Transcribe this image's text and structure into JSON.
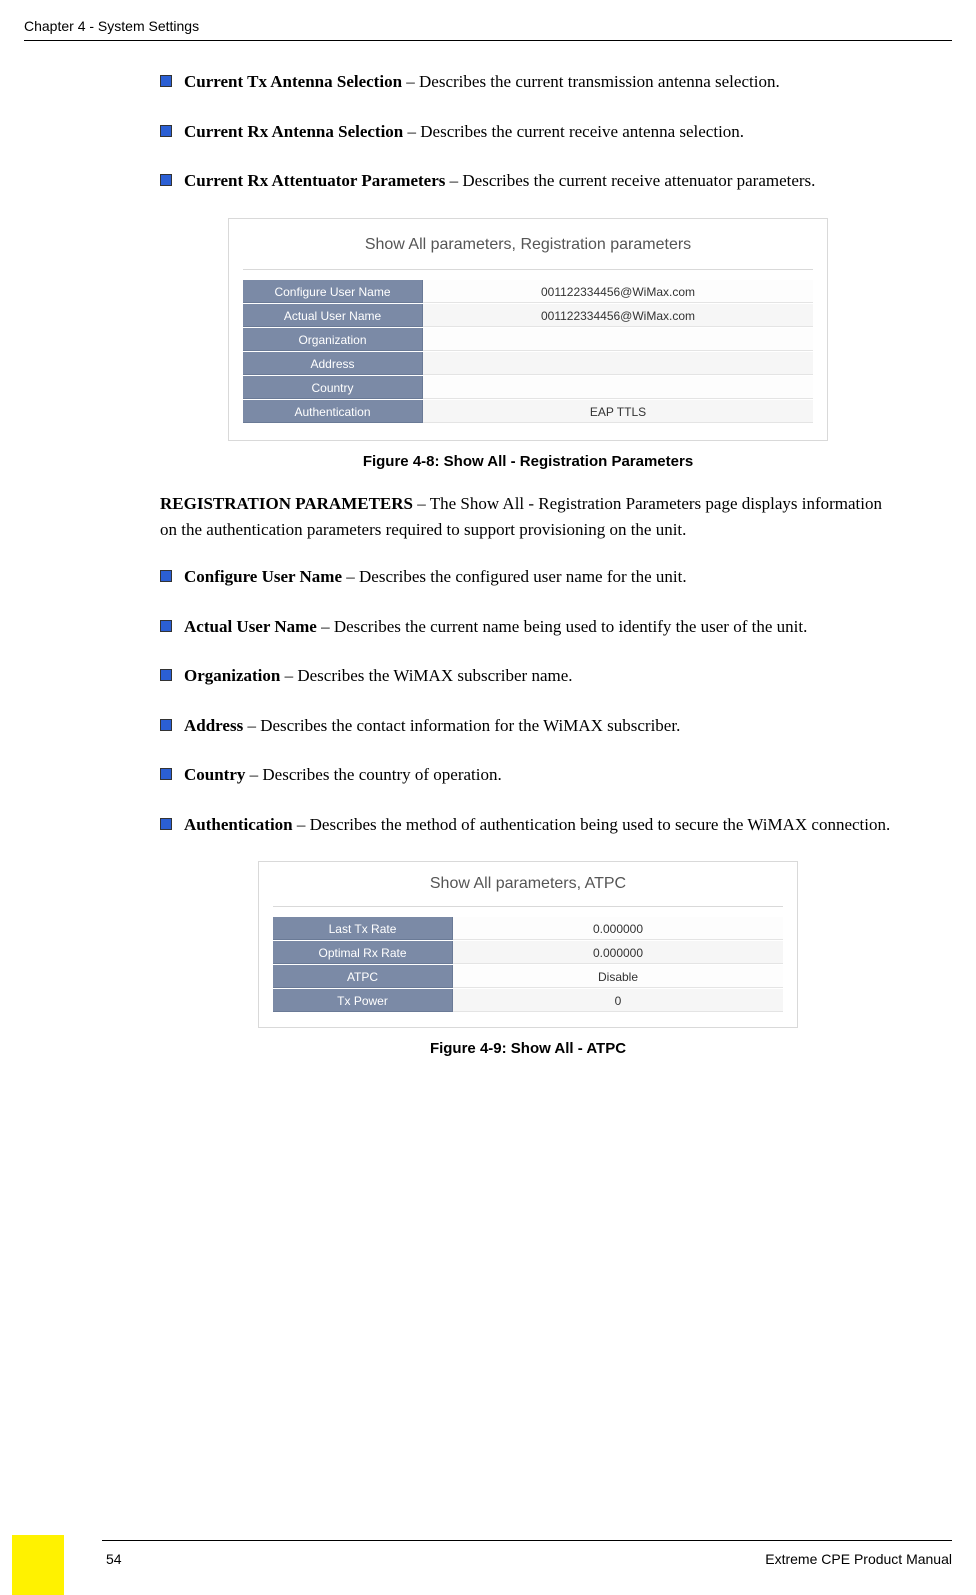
{
  "header": {
    "chapter": "Chapter 4 - System Settings"
  },
  "bullets_top": [
    {
      "term": "Current Tx Antenna Selection",
      "desc": " – Describes the current transmission antenna selection."
    },
    {
      "term": "Current Rx Antenna Selection",
      "desc": " – Describes the current receive antenna selection."
    },
    {
      "term": "Current Rx Attentuator Parameters",
      "desc": " – Describes the current receive attenuator parameters."
    }
  ],
  "figure1": {
    "title": "Show All parameters, Registration parameters",
    "caption": "Figure 4-8: Show All - Registration Parameters",
    "rows": [
      {
        "k": "Configure User Name",
        "v": "001122334456@WiMax.com"
      },
      {
        "k": "Actual User Name",
        "v": "001122334456@WiMax.com"
      },
      {
        "k": "Organization",
        "v": ""
      },
      {
        "k": "Address",
        "v": ""
      },
      {
        "k": "Country",
        "v": ""
      },
      {
        "k": "Authentication",
        "v": "EAP TTLS"
      }
    ]
  },
  "reg_intro": {
    "term": "REGISTRATION PARAMETERS",
    "desc": " – The Show All - Registration Parameters page displays information on the authentication parameters required to support provisioning on the unit."
  },
  "bullets_reg": [
    {
      "term": "Configure User Name",
      "desc": " – Describes the configured user name for the unit."
    },
    {
      "term": "Actual User Name",
      "desc": " – Describes the current name being used to identify the user of the unit."
    },
    {
      "term": "Organization",
      "desc": " – Describes the WiMAX subscriber name."
    },
    {
      "term": "Address",
      "desc": " – Describes the contact information for the WiMAX subscriber."
    },
    {
      "term": "Country",
      "desc": " – Describes the country of operation."
    },
    {
      "term": "Authentication",
      "desc": " – Describes the method of authentication being used to secure the WiMAX connection."
    }
  ],
  "figure2": {
    "title": "Show All parameters, ATPC",
    "caption": "Figure 4-9: Show All - ATPC",
    "rows": [
      {
        "k": "Last Tx Rate",
        "v": "0.000000"
      },
      {
        "k": "Optimal Rx Rate",
        "v": "0.000000"
      },
      {
        "k": "ATPC",
        "v": "Disable"
      },
      {
        "k": "Tx Power",
        "v": "0"
      }
    ]
  },
  "footer": {
    "page": "54",
    "manual": "Extreme CPE Product Manual"
  },
  "colors": {
    "bullet": "#2b5fd4",
    "yellow": "#fff200",
    "tableHeader": "#7b8aa6"
  }
}
